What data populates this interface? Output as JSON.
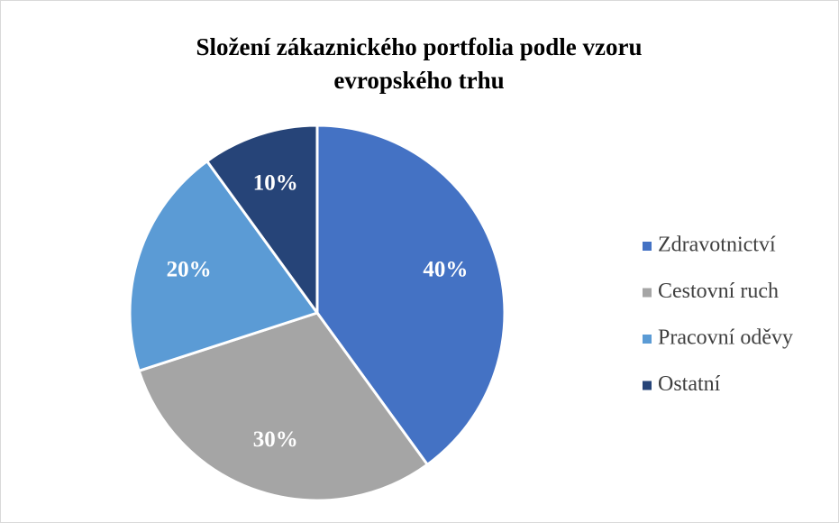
{
  "chart_data": {
    "type": "pie",
    "title": "Složení zákaznického portfolia podle vzoru evropského trhu",
    "categories": [
      "Zdravotnictví",
      "Cestovní ruch",
      "Pracovní oděvy",
      "Ostatní"
    ],
    "values": [
      40,
      30,
      20,
      10
    ],
    "value_labels": [
      "40%",
      "30%",
      "20%",
      "10%"
    ],
    "colors": [
      "#4472c4",
      "#a5a5a5",
      "#5b9bd5",
      "#264478"
    ],
    "legend": "right"
  }
}
